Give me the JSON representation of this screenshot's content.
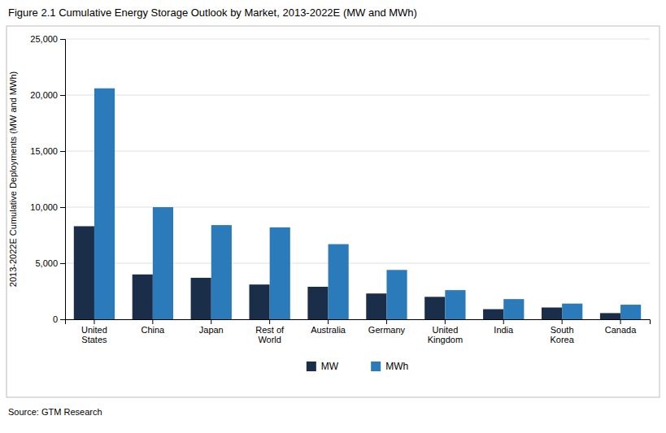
{
  "chart_data": {
    "type": "bar",
    "title": "Figure 2.1  Cumulative Energy Storage Outlook by Market, 2013-2022E (MW and MWh)",
    "y_label": "2013-2022E Cumulative Deployments (MW and MWh)",
    "source": "Source:    GTM Research",
    "categories": [
      "United\nStates",
      "China",
      "Japan",
      "Rest of\nWorld",
      "Australia",
      "Germany",
      "United\nKingdom",
      "India",
      "South\nKorea",
      "Canada"
    ],
    "series": [
      {
        "name": "MW",
        "color": "#1a2e4a",
        "values": [
          8300,
          4000,
          3700,
          3100,
          2900,
          2300,
          2000,
          900,
          1050,
          550
        ]
      },
      {
        "name": "MWh",
        "color": "#2b7bba",
        "values": [
          20600,
          10000,
          8400,
          8200,
          6700,
          4400,
          2600,
          1800,
          1400,
          1300
        ]
      }
    ],
    "ylim": [
      0,
      25000
    ],
    "yticks": [
      0,
      {
        "value": 5000,
        "label": "5,000"
      },
      {
        "value": 10000,
        "label": "10,000"
      },
      {
        "value": 15000,
        "label": "15,000"
      },
      {
        "value": 20000,
        "label": "20,000"
      },
      {
        "value": 25000,
        "label": "25,000"
      }
    ],
    "grid": true,
    "legend": "bottom"
  }
}
